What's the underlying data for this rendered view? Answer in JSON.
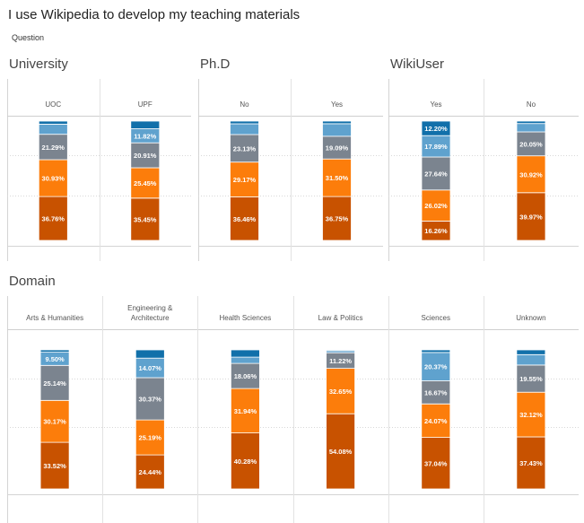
{
  "title": "I use Wikipedia to develop my teaching materials",
  "legend_label": "Question",
  "colors": {
    "c1": "#c85200",
    "c2": "#fc7d0b",
    "c3": "#7b848f",
    "c4": "#5fa2ce",
    "c5": "#1170aa"
  },
  "chart_data": [
    {
      "type": "bar",
      "stacked": true,
      "title": "University",
      "categories": [
        "UOC",
        "UPF"
      ],
      "series": [
        {
          "values": [
            36.76,
            35.45
          ]
        },
        {
          "values": [
            30.93,
            25.45
          ]
        },
        {
          "values": [
            21.29,
            20.91
          ]
        },
        {
          "values": [
            8.5,
            11.82
          ]
        },
        {
          "values": [
            2.52,
            6.37
          ]
        }
      ],
      "labels": [
        [
          "36.76%",
          "35.45%"
        ],
        [
          "30.93%",
          "25.45%"
        ],
        [
          "21.29%",
          "20.91%"
        ],
        [
          "",
          "11.82%"
        ],
        [
          "",
          ""
        ]
      ]
    },
    {
      "type": "bar",
      "stacked": true,
      "title": "Ph.D",
      "categories": [
        "No",
        "Yes"
      ],
      "series": [
        {
          "values": [
            36.46,
            36.75
          ]
        },
        {
          "values": [
            29.17,
            31.5
          ]
        },
        {
          "values": [
            23.13,
            19.09
          ]
        },
        {
          "values": [
            9.0,
            10.5
          ]
        },
        {
          "values": [
            2.24,
            2.16
          ]
        }
      ],
      "labels": [
        [
          "36.46%",
          "36.75%"
        ],
        [
          "29.17%",
          "31.50%"
        ],
        [
          "23.13%",
          "19.09%"
        ],
        [
          "",
          ""
        ],
        [
          "",
          ""
        ]
      ]
    },
    {
      "type": "bar",
      "stacked": true,
      "title": "WikiUser",
      "categories": [
        "Yes",
        "No"
      ],
      "series": [
        {
          "values": [
            16.26,
            39.97
          ]
        },
        {
          "values": [
            26.02,
            30.92
          ]
        },
        {
          "values": [
            27.64,
            20.05
          ]
        },
        {
          "values": [
            17.89,
            7.0
          ]
        },
        {
          "values": [
            12.2,
            2.06
          ]
        }
      ],
      "labels": [
        [
          "16.26%",
          "39.97%"
        ],
        [
          "26.02%",
          "30.92%"
        ],
        [
          "27.64%",
          "20.05%"
        ],
        [
          "17.89%",
          ""
        ],
        [
          "12.20%",
          ""
        ]
      ]
    },
    {
      "type": "bar",
      "stacked": true,
      "title": "Domain",
      "categories": [
        "Arts & Humanities",
        "Engineering & Architecture",
        "Health Sciences",
        "Law & Politics",
        "Sciences",
        "Unknown"
      ],
      "series": [
        {
          "values": [
            33.52,
            24.44,
            40.28,
            54.08,
            37.04,
            37.43
          ]
        },
        {
          "values": [
            30.17,
            25.19,
            31.94,
            32.65,
            24.07,
            32.12
          ]
        },
        {
          "values": [
            25.14,
            30.37,
            18.06,
            11.22,
            16.67,
            19.55
          ]
        },
        {
          "values": [
            9.5,
            14.07,
            4.5,
            1.5,
            20.37,
            7.5
          ]
        },
        {
          "values": [
            1.67,
            5.93,
            5.22,
            0.55,
            1.85,
            3.4
          ]
        }
      ],
      "labels": [
        [
          "33.52%",
          "24.44%",
          "40.28%",
          "54.08%",
          "37.04%",
          "37.43%"
        ],
        [
          "30.17%",
          "25.19%",
          "31.94%",
          "32.65%",
          "24.07%",
          "32.12%"
        ],
        [
          "25.14%",
          "30.37%",
          "18.06%",
          "11.22%",
          "16.67%",
          "19.55%"
        ],
        [
          "9.50%",
          "14.07%",
          "",
          "",
          "20.37%",
          ""
        ],
        [
          "",
          "",
          "",
          "",
          "",
          ""
        ]
      ]
    }
  ]
}
